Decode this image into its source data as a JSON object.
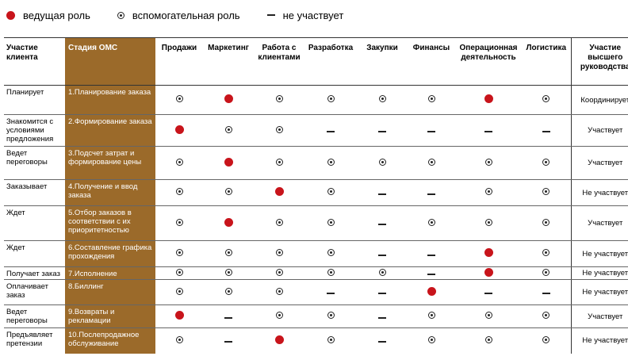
{
  "legend": {
    "leading": "ведущая роль",
    "supporting": "вспомогательная роль",
    "none": "не участвует"
  },
  "colors": {
    "leading": "#c8141b",
    "stage_bg": "#9b6a2a"
  },
  "header": {
    "client": "Участие клиента",
    "stage": "Стадия ОМС",
    "departments": [
      "Продажи",
      "Маркетинг",
      "Работа с клиентами",
      "Разработка",
      "Закупки",
      "Финансы",
      "Операционная деятельность",
      "Логистика"
    ],
    "management": "Участие высшего руководства"
  },
  "rows": [
    {
      "client": "Планирует",
      "stage": "1.Планирование заказа",
      "marks": [
        "s",
        "L",
        "s",
        "s",
        "s",
        "s",
        "L",
        "s"
      ],
      "management": "Координирует"
    },
    {
      "client": "Знакомится с условиями предложения",
      "stage": "2.Формирование заказа",
      "marks": [
        "L",
        "s",
        "s",
        "n",
        "n",
        "n",
        "n",
        "n"
      ],
      "management": "Участвует"
    },
    {
      "client": "Ведет переговоры",
      "stage": "3.Подсчет затрат и формирование цены",
      "marks": [
        "s",
        "L",
        "s",
        "s",
        "s",
        "s",
        "s",
        "s"
      ],
      "management": "Участвует"
    },
    {
      "client": "Заказывает",
      "stage": "4.Получение и ввод заказа",
      "marks": [
        "s",
        "s",
        "L",
        "s",
        "n",
        "n",
        "s",
        "s"
      ],
      "management": "Не участвует"
    },
    {
      "client": "Ждет",
      "stage": "5.Отбор заказов в соответствии с их приоритетностью",
      "marks": [
        "s",
        "L",
        "s",
        "s",
        "n",
        "s",
        "s",
        "s"
      ],
      "management": "Участвует"
    },
    {
      "client": "Ждет",
      "stage": "6.Составление графика прохождения",
      "marks": [
        "s",
        "s",
        "s",
        "s",
        "n",
        "n",
        "L",
        "s"
      ],
      "management": "Не участвует"
    },
    {
      "client": "Получает заказ",
      "stage": "7.Исполнение",
      "marks": [
        "s",
        "s",
        "s",
        "s",
        "s",
        "n",
        "L",
        "s"
      ],
      "management": "Не участвует"
    },
    {
      "client": "Оплачивает заказ",
      "stage": "8.Биллинг",
      "marks": [
        "s",
        "s",
        "s",
        "n",
        "n",
        "L",
        "n",
        "n"
      ],
      "management": "Не участвует"
    },
    {
      "client": "Ведет переговоры",
      "stage": "9.Возвраты и рекламации",
      "marks": [
        "L",
        "n",
        "s",
        "s",
        "n",
        "s",
        "s",
        "s"
      ],
      "management": "Участвует"
    },
    {
      "client": "Предъявляет претензии",
      "stage": "10.Послепродажное обслуживание",
      "marks": [
        "s",
        "n",
        "L",
        "s",
        "n",
        "s",
        "s",
        "s"
      ],
      "management": "Не участвует"
    }
  ]
}
